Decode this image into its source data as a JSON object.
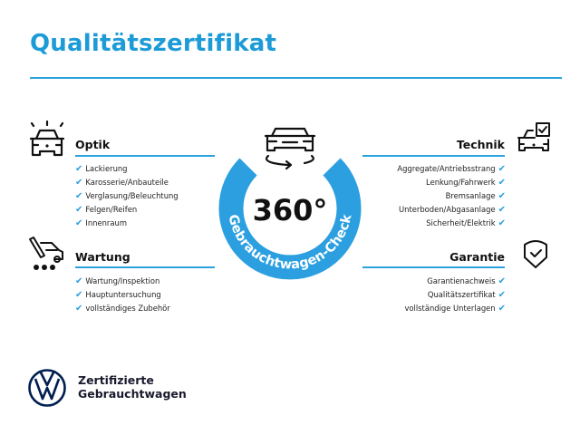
{
  "title": "Qualitätszertifikat",
  "colors": {
    "accent": "#2b9fe0",
    "title": "#1d9bd7",
    "brand": "#001e50"
  },
  "center": {
    "value": "360°",
    "ring_text": "Gebrauchtwagen-Check",
    "icon": "car-rotate-icon"
  },
  "sections": {
    "optik": {
      "heading": "Optik",
      "icon": "car-lights-icon",
      "items": [
        "Lackierung",
        "Karosserie/Anbauteile",
        "Verglasung/Beleuchtung",
        "Felgen/Reifen",
        "Innenraum"
      ]
    },
    "wartung": {
      "heading": "Wartung",
      "icon": "service-tools-icon",
      "items": [
        "Wartung/Inspektion",
        "Hauptuntersuchung",
        "vollständiges Zubehör"
      ]
    },
    "technik": {
      "heading": "Technik",
      "icon": "car-checklist-icon",
      "items": [
        "Aggregate/Antriebsstrang",
        "Lenkung/Fahrwerk",
        "Bremsanlage",
        "Unterboden/Abgasanlage",
        "Sicherheit/Elektrik"
      ]
    },
    "garantie": {
      "heading": "Garantie",
      "icon": "shield-check-icon",
      "items": [
        "Garantienachweis",
        "Qualitätszertifikat",
        "vollständige Unterlagen"
      ]
    }
  },
  "check_glyph": "✔",
  "brand": {
    "line1": "Zertifizierte",
    "line2": "Gebrauchtwagen",
    "logo": "vw-logo"
  }
}
